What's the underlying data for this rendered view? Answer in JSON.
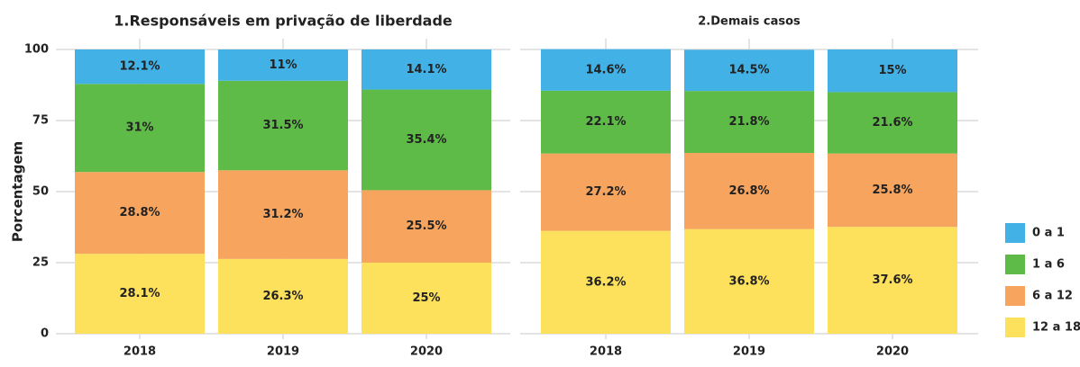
{
  "chart_data": {
    "type": "bar",
    "stacked": true,
    "ylabel": "Porcentagem",
    "ylim": [
      0,
      100
    ],
    "yticks": [
      0,
      25,
      50,
      75,
      100
    ],
    "grid": true,
    "legend": [
      {
        "name": "0 a 1",
        "color": "#41b1e6"
      },
      {
        "name": "1 a 6",
        "color": "#5fbb47"
      },
      {
        "name": "6 a 12",
        "color": "#f7a55e"
      },
      {
        "name": "12 a 18",
        "color": "#fde05b"
      }
    ],
    "panels": [
      {
        "title": "1.Responsáveis em privação de liberdade",
        "categories": [
          "2018",
          "2019",
          "2020"
        ],
        "series": [
          {
            "values": [
              12.1,
              11,
              14.1
            ],
            "value_labels": [
              "12.1%",
              "11%",
              "14.1%"
            ]
          },
          {
            "values": [
              31,
              31.5,
              35.4
            ],
            "value_labels": [
              "31%",
              "31.5%",
              "35.4%"
            ]
          },
          {
            "values": [
              28.8,
              31.2,
              25.5
            ],
            "value_labels": [
              "28.8%",
              "31.2%",
              "25.5%"
            ]
          },
          {
            "values": [
              28.1,
              26.3,
              25
            ],
            "value_labels": [
              "28.1%",
              "26.3%",
              "25%"
            ]
          }
        ]
      },
      {
        "title": "2.Demais casos",
        "categories": [
          "2018",
          "2019",
          "2020"
        ],
        "series": [
          {
            "values": [
              14.6,
              14.5,
              15
            ],
            "value_labels": [
              "14.6%",
              "14.5%",
              "15%"
            ]
          },
          {
            "values": [
              22.1,
              21.8,
              21.6
            ],
            "value_labels": [
              "22.1%",
              "21.8%",
              "21.6%"
            ]
          },
          {
            "values": [
              27.2,
              26.8,
              25.8
            ],
            "value_labels": [
              "27.2%",
              "26.8%",
              "25.8%"
            ]
          },
          {
            "values": [
              36.2,
              36.8,
              37.6
            ],
            "value_labels": [
              "36.2%",
              "36.8%",
              "37.6%"
            ]
          }
        ]
      }
    ]
  }
}
